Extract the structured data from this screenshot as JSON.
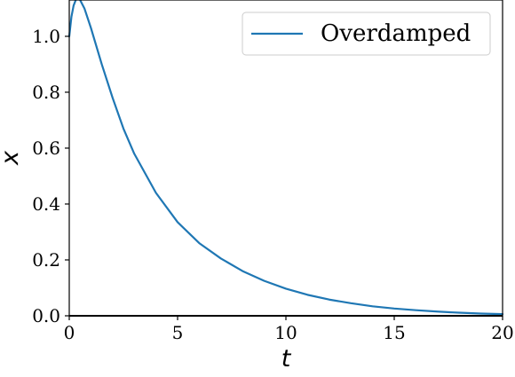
{
  "chart_data": {
    "type": "line",
    "title": "",
    "xlabel": "t",
    "ylabel": "x",
    "xlim": [
      0,
      20
    ],
    "ylim": [
      0,
      1.13
    ],
    "xticks": [
      0,
      5,
      10,
      15,
      20
    ],
    "xtick_labels": [
      "0",
      "5",
      "10",
      "15",
      "20"
    ],
    "yticks": [
      0.0,
      0.2,
      0.4,
      0.6,
      0.8,
      1.0
    ],
    "ytick_labels": [
      "0.0",
      "0.2",
      "0.4",
      "0.6",
      "0.8",
      "1.0"
    ],
    "grid": false,
    "legend": {
      "position": "upper-right",
      "entries": [
        "Overdamped"
      ]
    },
    "baseline": {
      "y": 0,
      "color": "#000000"
    },
    "series": [
      {
        "name": "Overdamped",
        "color": "#1f77b4",
        "x": [
          0,
          0.1,
          0.2,
          0.3,
          0.4,
          0.5,
          0.7,
          1.0,
          1.5,
          2.0,
          2.5,
          3.0,
          4.0,
          5.0,
          6.0,
          7.0,
          8.0,
          9.0,
          10.0,
          11.0,
          12.0,
          13.0,
          14.0,
          15.0,
          16.0,
          17.0,
          18.0,
          19.0,
          20.0
        ],
        "y": [
          1.0,
          1.07,
          1.11,
          1.13,
          1.135,
          1.13,
          1.1,
          1.03,
          0.9,
          0.78,
          0.67,
          0.58,
          0.44,
          0.335,
          0.26,
          0.205,
          0.16,
          0.125,
          0.097,
          0.075,
          0.058,
          0.045,
          0.034,
          0.026,
          0.02,
          0.015,
          0.011,
          0.008,
          0.006
        ]
      }
    ]
  }
}
